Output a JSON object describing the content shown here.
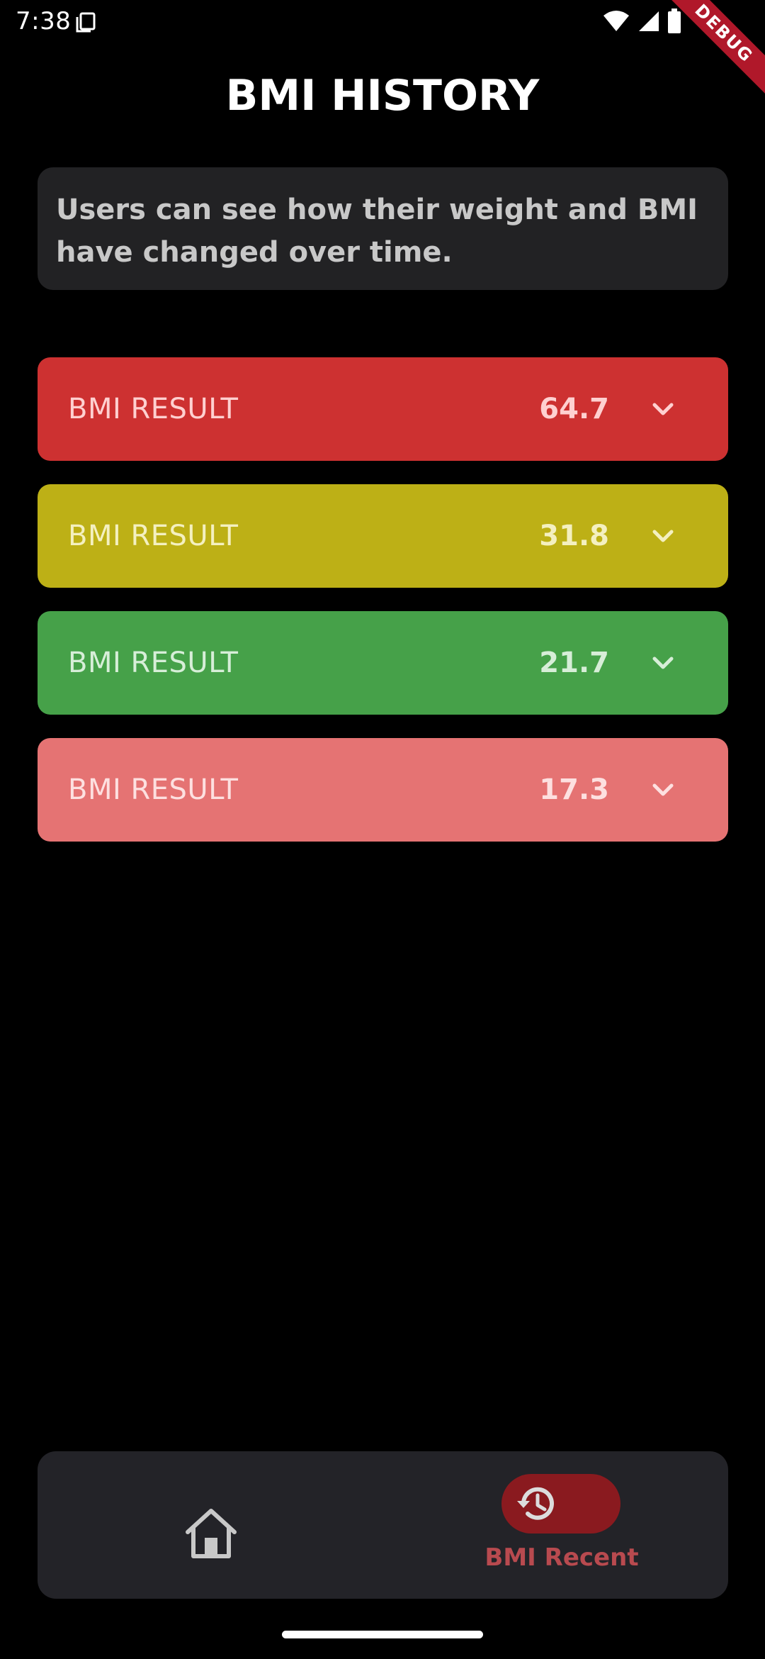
{
  "status_bar": {
    "time": "7:38",
    "icons": [
      "sim-card-icon",
      "wifi-icon",
      "cell-signal-icon",
      "battery-icon"
    ],
    "debug_banner": "DEBUG"
  },
  "page": {
    "title": "BMI HISTORY",
    "description": "Users can see how their weight and BMI have changed over time."
  },
  "results": [
    {
      "label": "BMI RESULT",
      "value": "64.7",
      "color": "#cd3131",
      "text_color": "#ffd0d0",
      "icon": "chevron-down-icon"
    },
    {
      "label": "BMI RESULT",
      "value": "31.8",
      "color": "#bdb016",
      "text_color": "#f4f0c0",
      "icon": "chevron-down-icon"
    },
    {
      "label": "BMI RESULT",
      "value": "21.7",
      "color": "#46a149",
      "text_color": "#d7eed8",
      "icon": "chevron-down-icon"
    },
    {
      "label": "BMI RESULT",
      "value": "17.3",
      "color": "#e57373",
      "text_color": "#fde0e0",
      "icon": "chevron-down-icon"
    }
  ],
  "bottom_nav": {
    "items": [
      {
        "icon": "home-icon",
        "label": ""
      },
      {
        "icon": "history-icon",
        "label": "BMI Recent",
        "active": true
      }
    ],
    "active_color": "#b84a4f",
    "active_pill_color": "#8a1a1f"
  }
}
